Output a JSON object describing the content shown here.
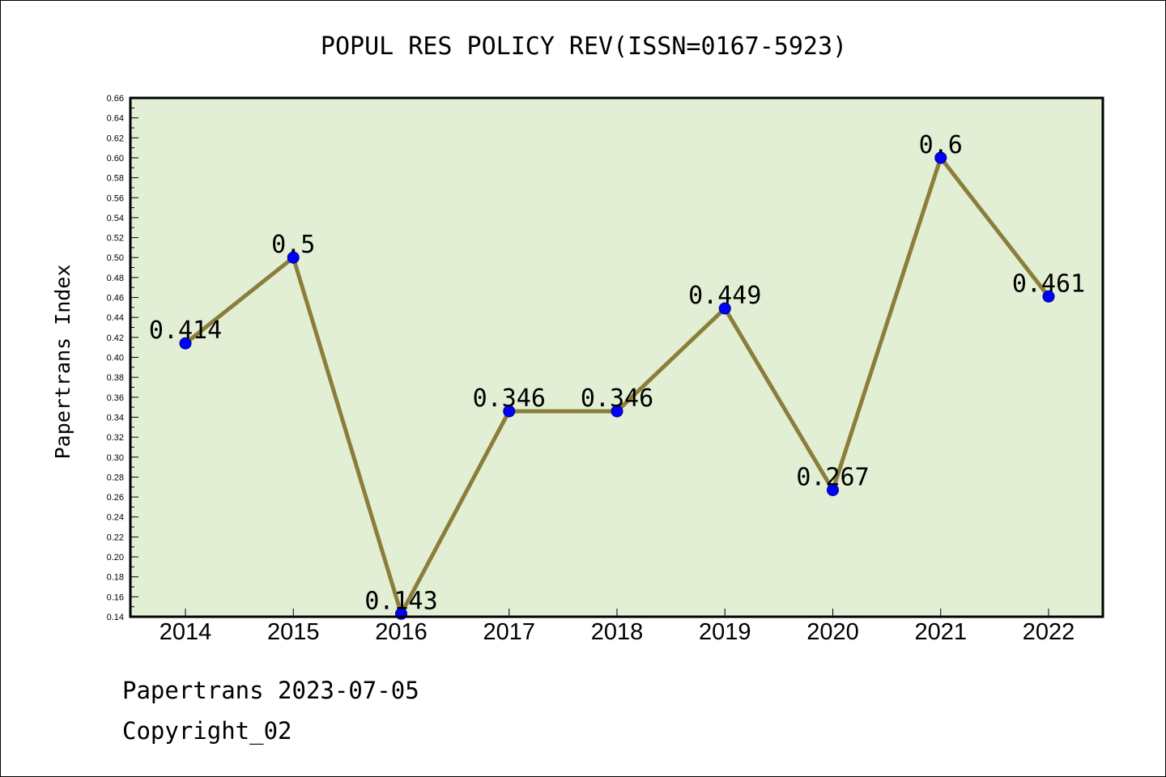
{
  "chart_data": {
    "type": "line",
    "title": "POPUL RES POLICY REV(ISSN=0167-5923)",
    "xlabel": "",
    "ylabel": "Papertrans Index",
    "categories": [
      "2014",
      "2015",
      "2016",
      "2017",
      "2018",
      "2019",
      "2020",
      "2021",
      "2022"
    ],
    "values": [
      0.414,
      0.5,
      0.143,
      0.346,
      0.346,
      0.449,
      0.267,
      0.6,
      0.461
    ],
    "data_labels": [
      "0.414",
      "0.5",
      "0.143",
      "0.346",
      "0.346",
      "0.449",
      "0.267",
      "0.6",
      "0.461"
    ],
    "ylim": [
      0.14,
      0.66
    ],
    "yticks": [
      "0.14",
      "0.16",
      "0.18",
      "0.20",
      "0.22",
      "0.24",
      "0.26",
      "0.28",
      "0.30",
      "0.32",
      "0.34",
      "0.36",
      "0.38",
      "0.40",
      "0.42",
      "0.44",
      "0.46",
      "0.48",
      "0.50",
      "0.52",
      "0.54",
      "0.56",
      "0.58",
      "0.60",
      "0.62",
      "0.64",
      "0.66"
    ],
    "grid": false,
    "legend": "none",
    "colors": {
      "plot_background": "#e2efd5",
      "line": "#8b7e3b",
      "marker": "#0000ff"
    }
  },
  "footer": {
    "credit": "Papertrans 2023-07-05",
    "copyright": "Copyright_02"
  }
}
